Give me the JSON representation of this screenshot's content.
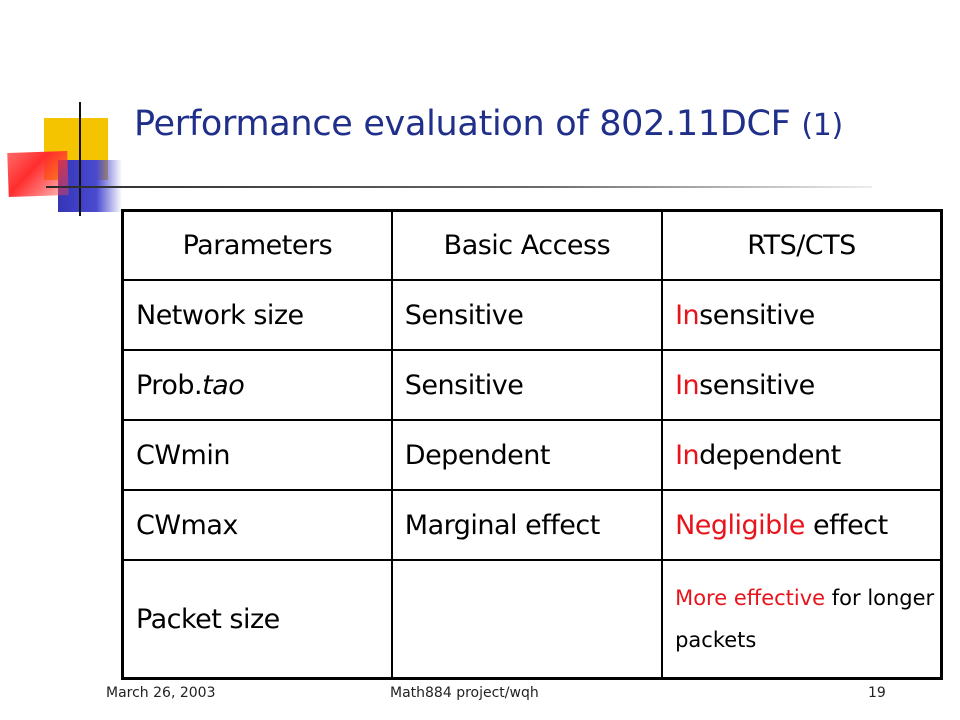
{
  "slide": {
    "title_main": "Performance evaluation of 802.11DCF",
    "title_suffix": "(1)"
  },
  "table": {
    "headers": [
      "Parameters",
      "Basic Access",
      "RTS/CTS"
    ],
    "rows": [
      {
        "param": "Network size",
        "basic": "Sensitive",
        "rts_prefix": "In",
        "rts_rest": "sensitive"
      },
      {
        "param_prefix": "Prob.",
        "param_italic": "tao",
        "basic": "Sensitive",
        "rts_prefix": "In",
        "rts_rest": "sensitive"
      },
      {
        "param": "CWmin",
        "basic": "Dependent",
        "rts_prefix": "In",
        "rts_rest": "dependent"
      },
      {
        "param": "CWmax",
        "basic": "Marginal effect",
        "rts_prefix": "Negligible",
        "rts_rest": " effect"
      },
      {
        "param": "Packet size",
        "basic": "",
        "rts_prefix": "More effective",
        "rts_rest": " for longer packets"
      }
    ]
  },
  "footer": {
    "date": "March 26, 2003",
    "project": "Math884 project/wqh",
    "page": "19"
  },
  "colors": {
    "title": "#1f2f8a",
    "parameter_text": "#16c4b4",
    "highlight_red": "#e8141c"
  }
}
